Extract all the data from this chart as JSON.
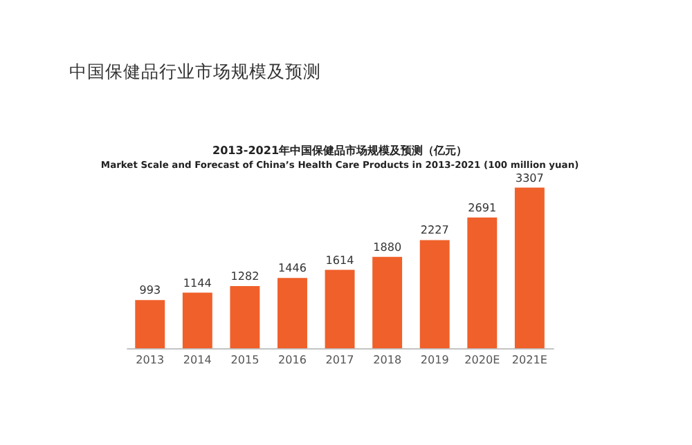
{
  "chart_data": {
    "type": "bar",
    "title": "中国保健品行业市场规模及预测",
    "subtitle": "2013-2021年中国保健品市场规模及预测（亿元）\nMarket Scale and Forecast of China’s Health Care Products in 2013-2021 (100 million yuan)",
    "categories": [
      "2013",
      "2014",
      "2015",
      "2016",
      "2017",
      "2018",
      "2019",
      "2020E",
      "2021E"
    ],
    "values": [
      993,
      1144,
      1282,
      1446,
      1614,
      1880,
      2227,
      2691,
      3307
    ],
    "color": "#f0602a",
    "data_labels": true,
    "grid": false
  }
}
